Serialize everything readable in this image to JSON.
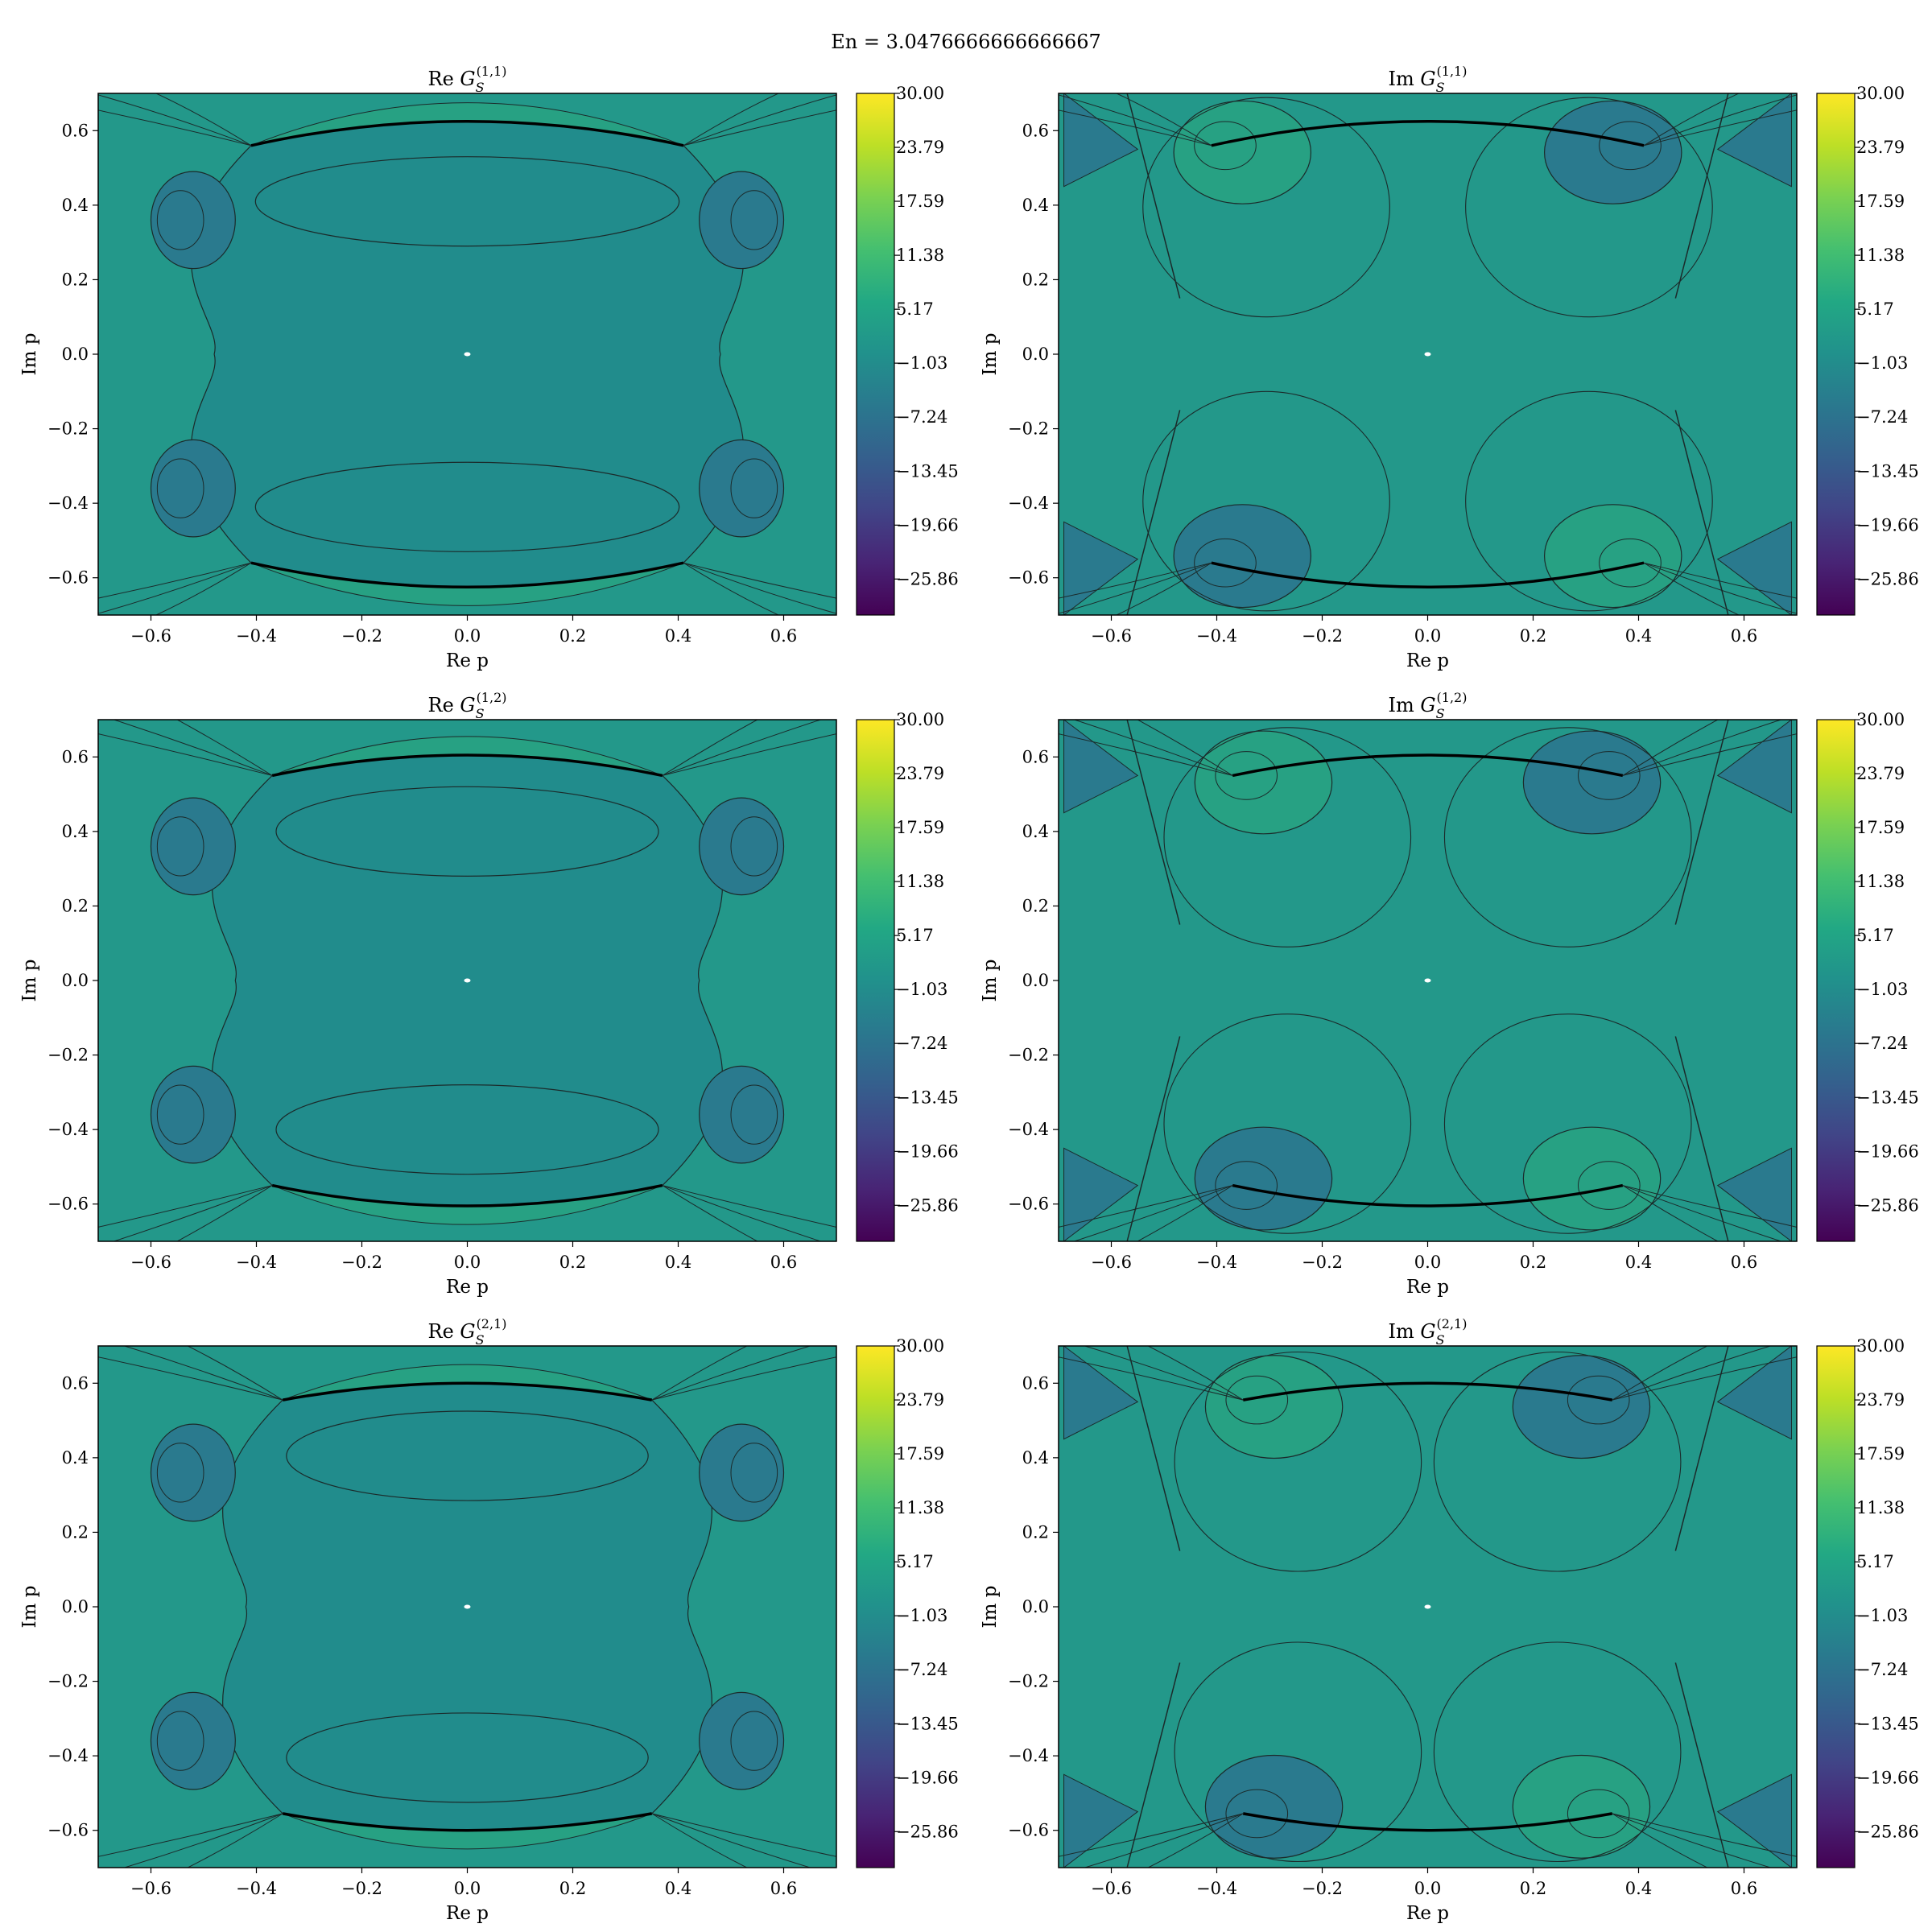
{
  "figure": {
    "suptitle": "En = 3.0476666666666667"
  },
  "colors": {
    "background_field": "#23988a",
    "interior_region": "#218c8c",
    "lobe_dark": "#2a7a8e",
    "lobe_light": "#27a183",
    "contour_line": "#1b2a2a",
    "colorbar_top": "#fde725",
    "colorbar_bottom": "#440154"
  },
  "chart_data": [
    {
      "type": "contour",
      "panel": "re-g11",
      "title_prefix": "Re",
      "title_symbol": "G",
      "title_sub": "S",
      "title_sup": "(1,1)",
      "xlabel": "Re p",
      "ylabel": "Im p",
      "xlim": [
        -0.7,
        0.7
      ],
      "ylim": [
        -0.7,
        0.7
      ],
      "xticks": [
        "−0.6",
        "−0.4",
        "−0.2",
        "0.0",
        "0.2",
        "0.4",
        "0.6"
      ],
      "yticks": [
        "0.6",
        "0.4",
        "0.2",
        "0.0",
        "−0.2",
        "−0.4",
        "−0.6"
      ],
      "colorbar_ticks": [
        "30.00",
        "23.79",
        "17.59",
        "11.38",
        "5.17",
        "−1.03",
        "−7.24",
        "−13.45",
        "−19.66",
        "−25.86"
      ],
      "colorbar_range": [
        -30,
        30
      ],
      "colormap": "viridis",
      "pole_x": 0.41,
      "pole_y": 0.56,
      "branch_peak": 0.625
    },
    {
      "type": "contour",
      "panel": "im-g11",
      "title_prefix": "Im",
      "title_symbol": "G",
      "title_sub": "S",
      "title_sup": "(1,1)",
      "xlabel": "Re p",
      "ylabel": "Im p",
      "xlim": [
        -0.7,
        0.7
      ],
      "ylim": [
        -0.7,
        0.7
      ],
      "xticks": [
        "−0.6",
        "−0.4",
        "−0.2",
        "0.0",
        "0.2",
        "0.4",
        "0.6"
      ],
      "yticks": [
        "0.6",
        "0.4",
        "0.2",
        "0.0",
        "−0.2",
        "−0.4",
        "−0.6"
      ],
      "colorbar_ticks": [
        "30.00",
        "23.79",
        "17.59",
        "11.38",
        "5.17",
        "−1.03",
        "−7.24",
        "−13.45",
        "−19.66",
        "−25.86"
      ],
      "colorbar_range": [
        -30,
        30
      ],
      "colormap": "viridis",
      "pole_x": 0.41,
      "pole_y": 0.56,
      "branch_peak": 0.625
    },
    {
      "type": "contour",
      "panel": "re-g12",
      "title_prefix": "Re",
      "title_symbol": "G",
      "title_sub": "S",
      "title_sup": "(1,2)",
      "xlabel": "Re p",
      "ylabel": "Im p",
      "xlim": [
        -0.7,
        0.7
      ],
      "ylim": [
        -0.7,
        0.7
      ],
      "xticks": [
        "−0.6",
        "−0.4",
        "−0.2",
        "0.0",
        "0.2",
        "0.4",
        "0.6"
      ],
      "yticks": [
        "0.6",
        "0.4",
        "0.2",
        "0.0",
        "−0.2",
        "−0.4",
        "−0.6"
      ],
      "colorbar_ticks": [
        "30.00",
        "23.79",
        "17.59",
        "11.38",
        "5.17",
        "−1.03",
        "−7.24",
        "−13.45",
        "−19.66",
        "−25.86"
      ],
      "colorbar_range": [
        -30,
        30
      ],
      "colormap": "viridis",
      "pole_x": 0.37,
      "pole_y": 0.55,
      "branch_peak": 0.605
    },
    {
      "type": "contour",
      "panel": "im-g12",
      "title_prefix": "Im",
      "title_symbol": "G",
      "title_sub": "S",
      "title_sup": "(1,2)",
      "xlabel": "Re p",
      "ylabel": "Im p",
      "xlim": [
        -0.7,
        0.7
      ],
      "ylim": [
        -0.7,
        0.7
      ],
      "xticks": [
        "−0.6",
        "−0.4",
        "−0.2",
        "0.0",
        "0.2",
        "0.4",
        "0.6"
      ],
      "yticks": [
        "0.6",
        "0.4",
        "0.2",
        "0.0",
        "−0.2",
        "−0.4",
        "−0.6"
      ],
      "colorbar_ticks": [
        "30.00",
        "23.79",
        "17.59",
        "11.38",
        "5.17",
        "−1.03",
        "−7.24",
        "−13.45",
        "−19.66",
        "−25.86"
      ],
      "colorbar_range": [
        -30,
        30
      ],
      "colormap": "viridis",
      "pole_x": 0.37,
      "pole_y": 0.55,
      "branch_peak": 0.605
    },
    {
      "type": "contour",
      "panel": "re-g21",
      "title_prefix": "Re",
      "title_symbol": "G",
      "title_sub": "S",
      "title_sup": "(2,1)",
      "xlabel": "Re p",
      "ylabel": "Im p",
      "xlim": [
        -0.7,
        0.7
      ],
      "ylim": [
        -0.7,
        0.7
      ],
      "xticks": [
        "−0.6",
        "−0.4",
        "−0.2",
        "0.0",
        "0.2",
        "0.4",
        "0.6"
      ],
      "yticks": [
        "0.6",
        "0.4",
        "0.2",
        "0.0",
        "−0.2",
        "−0.4",
        "−0.6"
      ],
      "colorbar_ticks": [
        "30.00",
        "23.79",
        "17.59",
        "11.38",
        "5.17",
        "−1.03",
        "−7.24",
        "−13.45",
        "−19.66",
        "−25.86"
      ],
      "colorbar_range": [
        -30,
        30
      ],
      "colormap": "viridis",
      "pole_x": 0.35,
      "pole_y": 0.555,
      "branch_peak": 0.6
    },
    {
      "type": "contour",
      "panel": "im-g21",
      "title_prefix": "Im",
      "title_symbol": "G",
      "title_sub": "S",
      "title_sup": "(2,1)",
      "xlabel": "Re p",
      "ylabel": "Im p",
      "xlim": [
        -0.7,
        0.7
      ],
      "ylim": [
        -0.7,
        0.7
      ],
      "xticks": [
        "−0.6",
        "−0.4",
        "−0.2",
        "0.0",
        "0.2",
        "0.4",
        "0.6"
      ],
      "yticks": [
        "0.6",
        "0.4",
        "0.2",
        "0.0",
        "−0.2",
        "−0.4",
        "−0.6"
      ],
      "colorbar_ticks": [
        "30.00",
        "23.79",
        "17.59",
        "11.38",
        "5.17",
        "−1.03",
        "−7.24",
        "−13.45",
        "−19.66",
        "−25.86"
      ],
      "colorbar_range": [
        -30,
        30
      ],
      "colormap": "viridis",
      "pole_x": 0.35,
      "pole_y": 0.555,
      "branch_peak": 0.6
    }
  ]
}
